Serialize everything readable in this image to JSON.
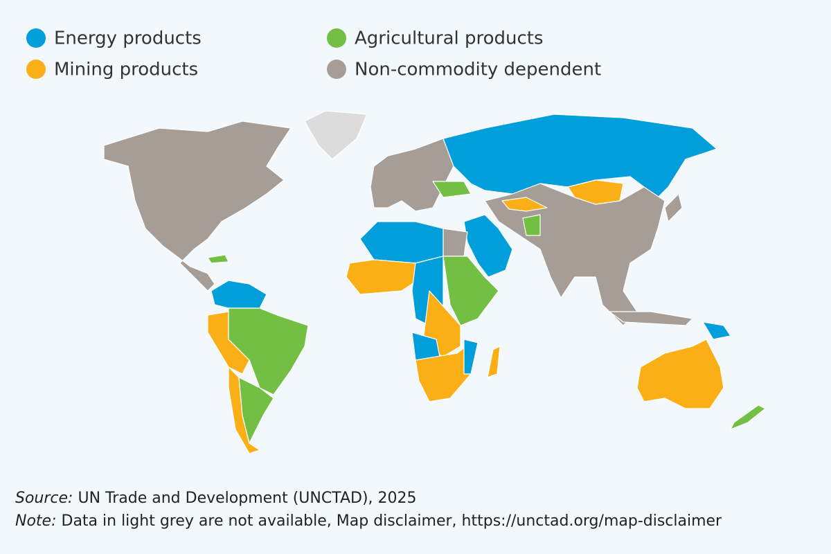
{
  "legend": [
    {
      "label": "Energy products",
      "color": "#009edb"
    },
    {
      "label": "Agricultural products",
      "color": "#72bf44"
    },
    {
      "label": "Mining products",
      "color": "#fbaf17"
    },
    {
      "label": "Non-commodity dependent",
      "color": "#a69d96"
    }
  ],
  "footer": {
    "source_label": "Source:",
    "source_text": "UN Trade and Development (UNCTAD), 2025",
    "note_label": "Note:",
    "note_text": "Data in light grey are not available, Map disclaimer, https://unctad.org/map-disclaimer"
  }
}
